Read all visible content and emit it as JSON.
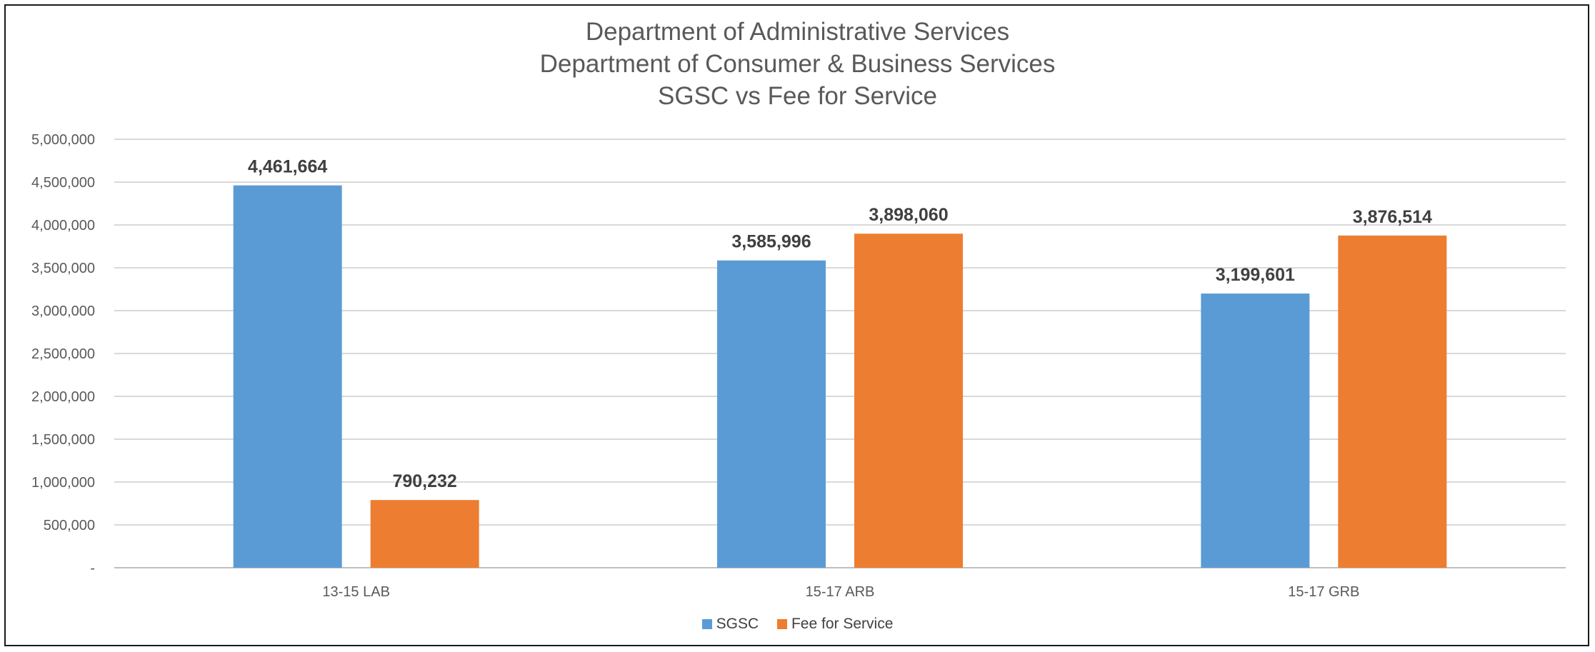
{
  "chart_data": {
    "type": "bar",
    "title_lines": [
      "Department of Administrative Services",
      "Department of Consumer & Business Services",
      "SGSC vs Fee for Service"
    ],
    "categories": [
      "13-15 LAB",
      "15-17 ARB",
      "15-17 GRB"
    ],
    "series": [
      {
        "name": "SGSC",
        "color": "#5B9BD5",
        "values": [
          4461664,
          3585996,
          3199601
        ]
      },
      {
        "name": "Fee for Service",
        "color": "#ED7D31",
        "values": [
          790232,
          3898060,
          3876514
        ]
      }
    ],
    "ylim": [
      0,
      5000000
    ],
    "y_ticks": [
      0,
      500000,
      1000000,
      1500000,
      2000000,
      2500000,
      3000000,
      3500000,
      4000000,
      4500000,
      5000000
    ],
    "y_tick_labels": [
      "-",
      "500,000",
      "1,000,000",
      "1,500,000",
      "2,000,000",
      "2,500,000",
      "3,000,000",
      "3,500,000",
      "4,000,000",
      "4,500,000",
      "5,000,000"
    ],
    "data_labels": [
      [
        "4,461,664",
        "3,585,996",
        "3,199,601"
      ],
      [
        "790,232",
        "3,898,060",
        "3,876,514"
      ]
    ],
    "grid": true,
    "legend_position": "bottom"
  }
}
